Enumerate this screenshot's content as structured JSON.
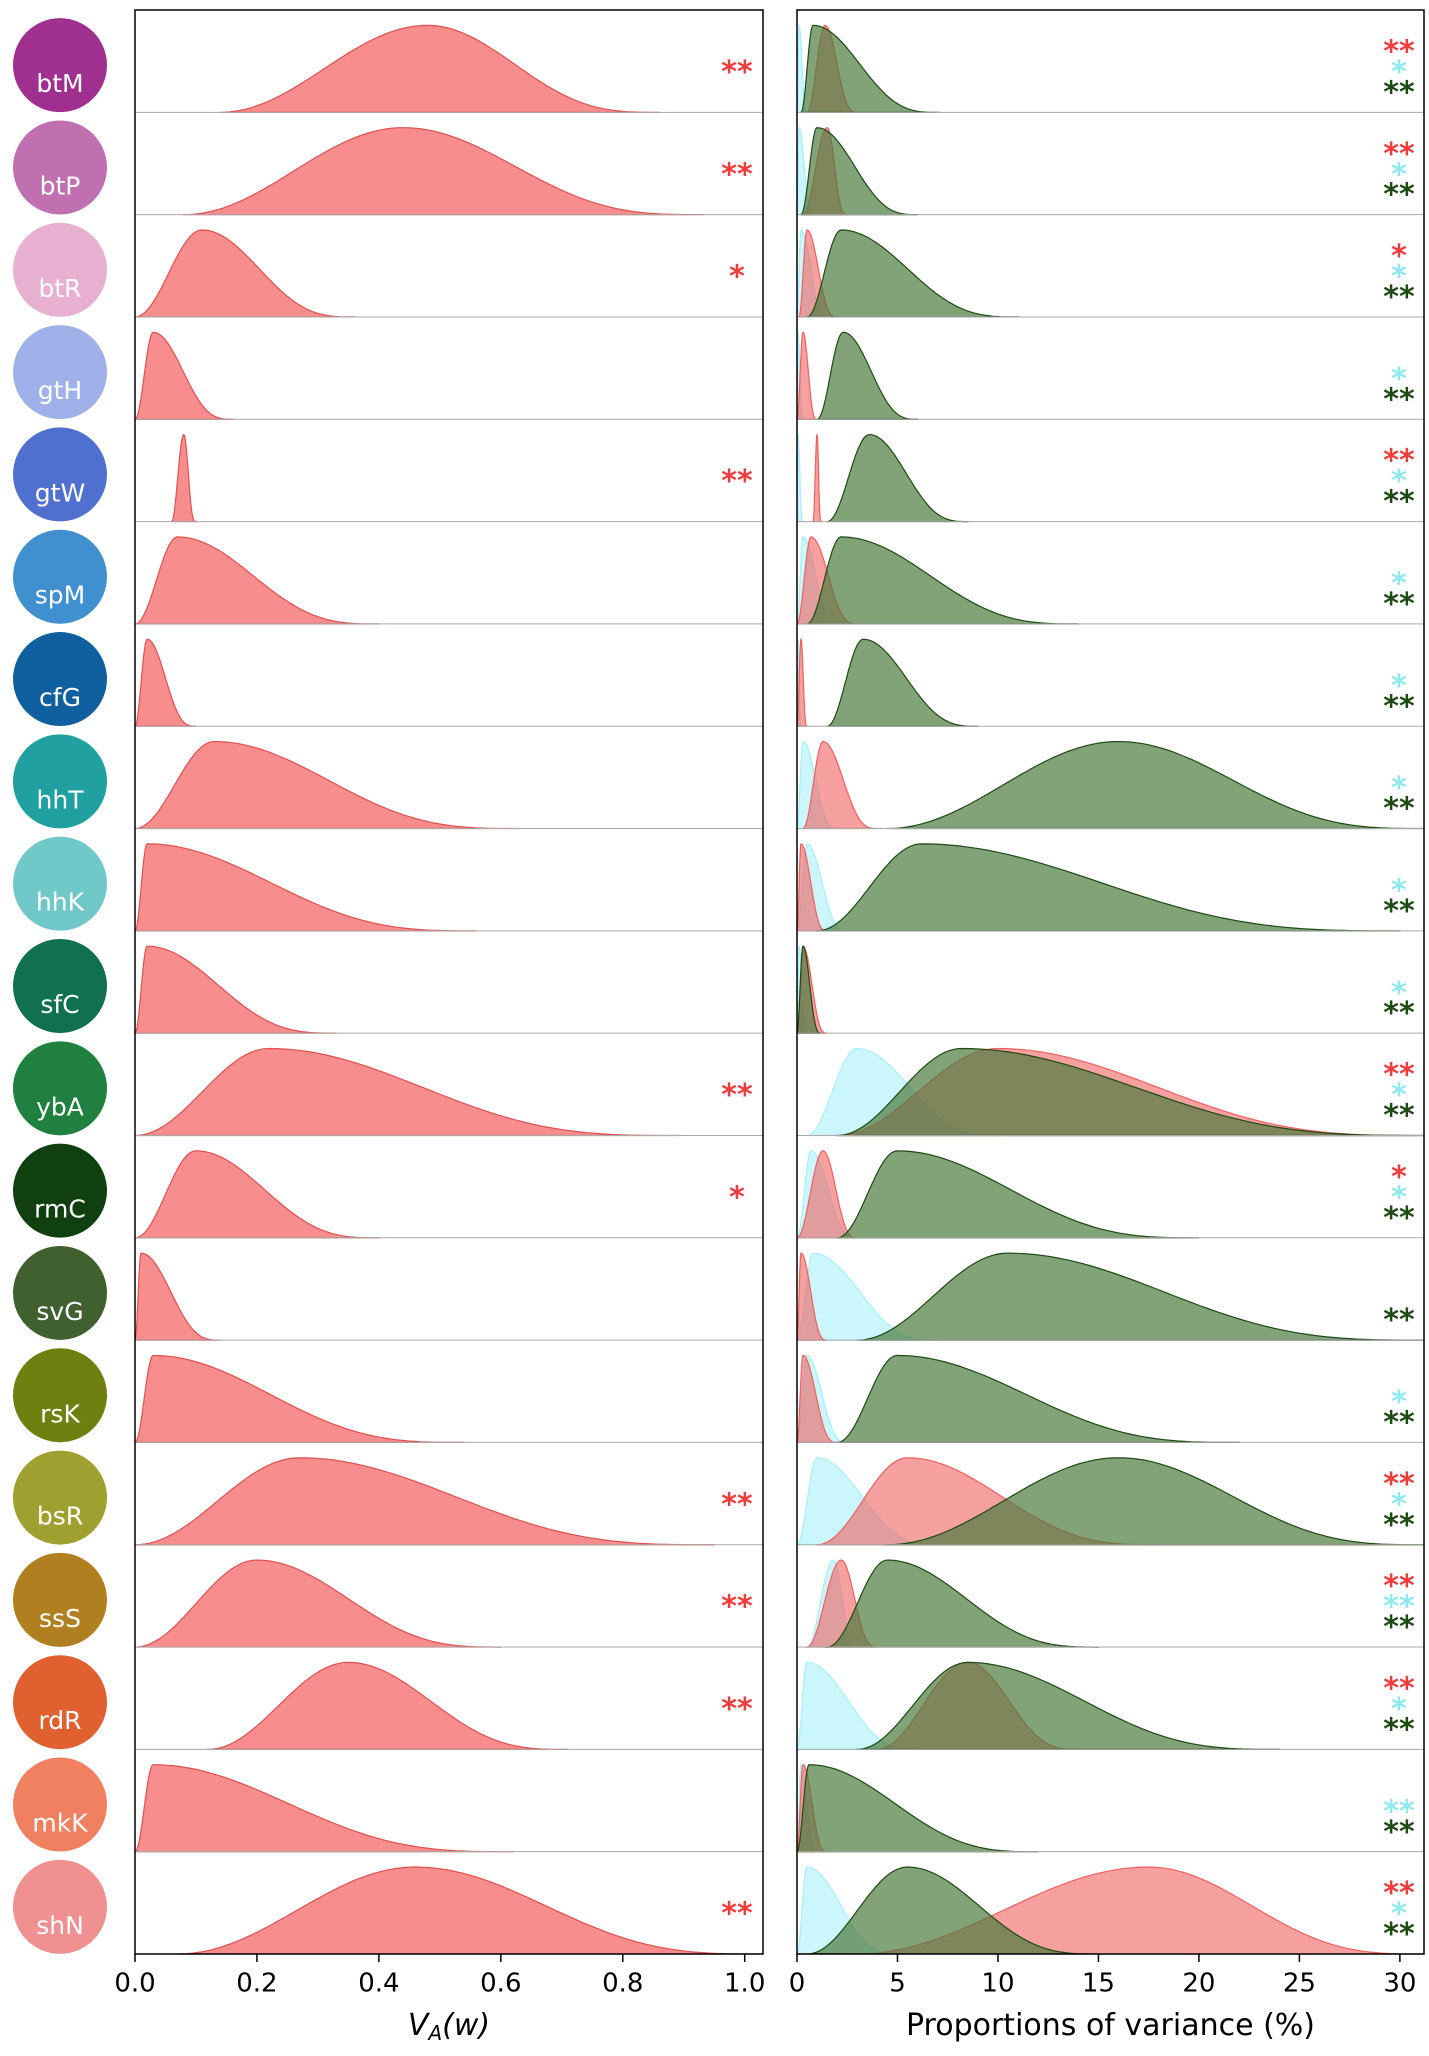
{
  "chart_data": {
    "type": "ridgeline",
    "colors": {
      "va": "#f78787",
      "red": "#f06060",
      "cyan": "#a8f0f8",
      "green": "#4d7a3e",
      "va_star": "#f03c3c",
      "red_star": "#f03c3c",
      "cyan_star": "#90e8f0",
      "green_star": "#1e4a14"
    },
    "panels": [
      {
        "xlabel": {
          "main": "V",
          "sub": "A",
          "rest": "(w)"
        },
        "xlim": [
          0,
          1.03
        ],
        "xticks": [
          {
            "value": 0,
            "label": "0.0"
          },
          {
            "value": 0.2,
            "label": "0.2"
          },
          {
            "value": 0.4,
            "label": "0.4"
          },
          {
            "value": 0.6,
            "label": "0.6"
          },
          {
            "value": 0.8,
            "label": "0.8"
          },
          {
            "value": 1,
            "label": "1.0"
          }
        ]
      },
      {
        "xlabel": {
          "main": "Proportions of variance (%)"
        },
        "xlim": [
          0,
          31.2
        ],
        "xticks": [
          0,
          5,
          10,
          15,
          20,
          25,
          30
        ]
      }
    ],
    "rows": [
      {
        "label": "btM",
        "color": "#a03090",
        "va": [
          0.14,
          0.48,
          0.86
        ],
        "va_stars": "**",
        "red": [
          0.5,
          1.4,
          3
        ],
        "cyan": [
          0,
          0.1,
          0.5
        ],
        "green": [
          0.2,
          0.8,
          7
        ],
        "stars": {
          "red": "**",
          "cyan": "*",
          "green": "**"
        }
      },
      {
        "label": "btP",
        "color": "#c070b0",
        "va": [
          0.08,
          0.44,
          0.93
        ],
        "va_stars": "**",
        "red": [
          0.3,
          1.5,
          2.5
        ],
        "cyan": [
          0,
          0.1,
          0.8
        ],
        "green": [
          0.2,
          1,
          6
        ],
        "stars": {
          "red": "**",
          "cyan": "*",
          "green": "**"
        }
      },
      {
        "label": "btR",
        "color": "#e8b0d0",
        "va": [
          0,
          0.11,
          0.36
        ],
        "va_stars": "*",
        "red": [
          0.1,
          0.5,
          2
        ],
        "cyan": [
          0,
          0.2,
          1.5
        ],
        "green": [
          0.5,
          2.2,
          11
        ],
        "stars": {
          "red": "*",
          "cyan": "*",
          "green": "**"
        }
      },
      {
        "label": "gtH",
        "color": "#a0b0e8",
        "va": [
          0,
          0.03,
          0.16
        ],
        "red": [
          0,
          0.3,
          1
        ],
        "cyan": [
          0,
          0.05,
          0.3
        ],
        "green": [
          1,
          2.3,
          6
        ],
        "stars": {
          "cyan": "*",
          "green": "**"
        }
      },
      {
        "label": "gtW",
        "color": "#5070d0",
        "va": [
          0.06,
          0.08,
          0.1
        ],
        "va_stars": "**",
        "red": [
          0.8,
          1,
          1.2
        ],
        "cyan": [
          0,
          0.05,
          0.3
        ],
        "green": [
          1.5,
          3.6,
          8.5
        ],
        "stars": {
          "red": "**",
          "cyan": "*",
          "green": "**"
        }
      },
      {
        "label": "spM",
        "color": "#4090d0",
        "va": [
          0,
          0.07,
          0.4
        ],
        "red": [
          0,
          0.7,
          3
        ],
        "cyan": [
          0,
          0.3,
          2
        ],
        "green": [
          0.5,
          2.2,
          14
        ],
        "stars": {
          "cyan": "*",
          "green": "**"
        }
      },
      {
        "label": "cfG",
        "color": "#1060a0",
        "va": [
          0,
          0.02,
          0.1
        ],
        "red": [
          0,
          0.2,
          0.5
        ],
        "cyan": [
          0,
          0.05,
          0.2
        ],
        "green": [
          1.5,
          3.3,
          9
        ],
        "stars": {
          "cyan": "*",
          "green": "**"
        }
      },
      {
        "label": "hhT",
        "color": "#20a0a0",
        "va": [
          0,
          0.13,
          0.63
        ],
        "red": [
          0.3,
          1.3,
          4
        ],
        "cyan": [
          0,
          0.3,
          2
        ],
        "green": [
          4.5,
          16,
          31.2
        ],
        "stars": {
          "cyan": "*",
          "green": "**"
        }
      },
      {
        "label": "hhK",
        "color": "#70c8c8",
        "va": [
          0,
          0.02,
          0.56
        ],
        "red": [
          0,
          0.2,
          1.5
        ],
        "cyan": [
          0,
          0.5,
          2.5
        ],
        "green": [
          1,
          6.2,
          30
        ],
        "stars": {
          "cyan": "*",
          "green": "**"
        }
      },
      {
        "label": "sfC",
        "color": "#107050",
        "va": [
          0,
          0.02,
          0.33
        ],
        "red": [
          0,
          0.3,
          1.5
        ],
        "cyan": [
          0,
          0.1,
          0.5
        ],
        "green": [
          0,
          0.3,
          1.2
        ],
        "stars": {
          "cyan": "*",
          "green": "**"
        }
      },
      {
        "label": "ybA",
        "color": "#208040",
        "va": [
          0,
          0.22,
          0.89
        ],
        "va_stars": "**",
        "red": [
          2,
          10,
          31.2
        ],
        "cyan": [
          0.5,
          3,
          10
        ],
        "green": [
          2,
          8.2,
          31.2
        ],
        "stars": {
          "red": "**",
          "cyan": "*",
          "green": "**"
        }
      },
      {
        "label": "rmC",
        "color": "#104010",
        "va": [
          0,
          0.1,
          0.4
        ],
        "va_stars": "*",
        "red": [
          0,
          1.3,
          3
        ],
        "cyan": [
          0,
          0.7,
          3
        ],
        "green": [
          2,
          5,
          20
        ],
        "stars": {
          "red": "*",
          "cyan": "*",
          "green": "**"
        }
      },
      {
        "label": "svG",
        "color": "#406030",
        "va": [
          0,
          0.01,
          0.14
        ],
        "red": [
          0,
          0.2,
          1.5
        ],
        "cyan": [
          0,
          0.8,
          7
        ],
        "green": [
          3,
          10.5,
          31.2
        ],
        "stars": {
          "green": "**"
        }
      },
      {
        "label": "rsK",
        "color": "#708010",
        "va": [
          0,
          0.03,
          0.54
        ],
        "red": [
          0,
          0.3,
          2
        ],
        "cyan": [
          0,
          0.5,
          2.5
        ],
        "green": [
          2,
          5,
          22
        ],
        "stars": {
          "cyan": "*",
          "green": "**"
        }
      },
      {
        "label": "bsR",
        "color": "#a0a030",
        "va": [
          0,
          0.27,
          0.95
        ],
        "va_stars": "**",
        "red": [
          1,
          5.5,
          18
        ],
        "cyan": [
          0,
          1,
          7
        ],
        "green": [
          4.5,
          16,
          31.2
        ],
        "stars": {
          "red": "**",
          "cyan": "*",
          "green": "**"
        }
      },
      {
        "label": "ssS",
        "color": "#b08020",
        "va": [
          0,
          0.2,
          0.6
        ],
        "va_stars": "**",
        "red": [
          0.5,
          2.2,
          4
        ],
        "cyan": [
          0.5,
          1.8,
          3
        ],
        "green": [
          1.5,
          4.5,
          15
        ],
        "stars": {
          "red": "**",
          "cyan": "**",
          "green": "**"
        }
      },
      {
        "label": "rdR",
        "color": "#e06030",
        "va": [
          0.12,
          0.35,
          0.71
        ],
        "va_stars": "**",
        "red": [
          4,
          8.5,
          14
        ],
        "cyan": [
          0,
          0.5,
          6
        ],
        "green": [
          3,
          8.5,
          24
        ],
        "stars": {
          "red": "**",
          "cyan": "*",
          "green": "**"
        }
      },
      {
        "label": "mkK",
        "color": "#f08060",
        "va": [
          0,
          0.03,
          0.62
        ],
        "red": [
          0,
          0.3,
          1.5
        ],
        "cyan": [
          0,
          0.2,
          1
        ],
        "green": [
          0,
          0.6,
          12
        ],
        "stars": {
          "cyan": "**",
          "green": "**"
        }
      },
      {
        "label": "shN",
        "color": "#f09090",
        "va": [
          0.07,
          0.46,
          1.03
        ],
        "va_stars": "**",
        "red": [
          3,
          17.5,
          31.2
        ],
        "cyan": [
          0,
          0.5,
          5
        ],
        "green": [
          0.5,
          5.5,
          15
        ],
        "stars": {
          "red": "**",
          "cyan": "*",
          "green": "**"
        }
      }
    ]
  }
}
